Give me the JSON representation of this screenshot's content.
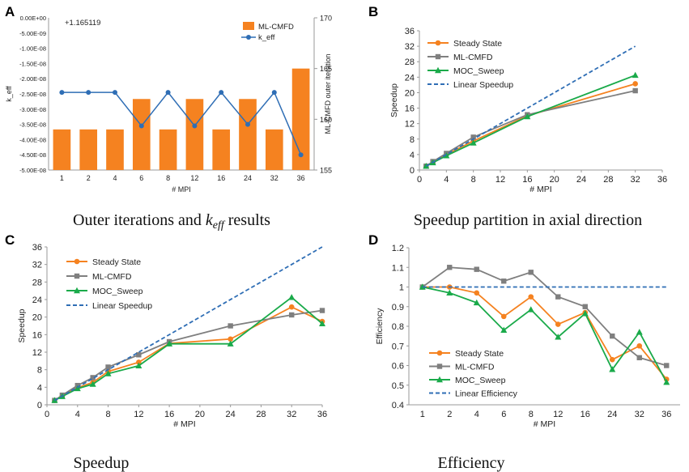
{
  "chart_data": [
    {
      "letter": "A",
      "type": "bar",
      "caption": "Outer iterations and k_eff results",
      "offset_label": "+1.165119",
      "categories": [
        "1",
        "2",
        "4",
        "6",
        "8",
        "12",
        "16",
        "24",
        "32",
        "36"
      ],
      "xlabel": "# MPI",
      "ylabel": "k_eff",
      "y2label": "ML-CMFD outer iteration",
      "ylim": [
        -5e-08,
        0
      ],
      "y_ticks": [
        "0.00E+00",
        "-5.00E-09",
        "-1.00E-08",
        "-1.50E-08",
        "-2.00E-08",
        "-2.50E-08",
        "-3.00E-08",
        "-3.50E-08",
        "-4.00E-08",
        "-4.50E-08",
        "-5.00E-08"
      ],
      "y2lim": [
        155,
        170
      ],
      "y2_ticks": [
        "155",
        "160",
        "165",
        "170"
      ],
      "series": [
        {
          "name": "ML-CMFD",
          "kind": "bar",
          "axis": "right",
          "color": "#f58220",
          "values": [
            159,
            159,
            159,
            162,
            159,
            162,
            159,
            162,
            159,
            165
          ]
        },
        {
          "name": "k_eff",
          "kind": "line",
          "axis": "left",
          "color": "#2f6eb5",
          "values": [
            -2.45e-08,
            -2.45e-08,
            -2.45e-08,
            -3.55e-08,
            -2.45e-08,
            -3.55e-08,
            -2.45e-08,
            -3.5e-08,
            -2.45e-08,
            -4.5e-08
          ]
        }
      ]
    },
    {
      "letter": "B",
      "type": "line",
      "caption": "Speedup partition in axial direction",
      "xlabel": "# MPI",
      "ylabel": "Speedup",
      "xlim": [
        0,
        36
      ],
      "ylim": [
        0,
        36
      ],
      "x_ticks": [
        "0",
        "4",
        "8",
        "12",
        "16",
        "20",
        "24",
        "28",
        "32",
        "36"
      ],
      "y_ticks": [
        "0",
        "4",
        "8",
        "12",
        "16",
        "20",
        "24",
        "28",
        "32",
        "36"
      ],
      "series": [
        {
          "name": "Steady State",
          "color": "#f58220",
          "marker": "circle",
          "x": [
            1,
            2,
            4,
            8,
            16,
            32
          ],
          "values": [
            1,
            2,
            4,
            7.5,
            14,
            22.3
          ]
        },
        {
          "name": "ML-CMFD",
          "color": "#7f7f7f",
          "marker": "square",
          "x": [
            1,
            2,
            4,
            8,
            16,
            32
          ],
          "values": [
            1,
            2.2,
            4.3,
            8.5,
            14.3,
            20.5
          ]
        },
        {
          "name": "MOC_Sweep",
          "color": "#1aaa4a",
          "marker": "triangle",
          "x": [
            1,
            2,
            4,
            8,
            16,
            32
          ],
          "values": [
            1,
            1.9,
            3.7,
            7,
            13.8,
            24.5
          ]
        },
        {
          "name": "Linear Speedup",
          "color": "#2f6eb5",
          "marker": "none",
          "dashed": true,
          "x": [
            1,
            32
          ],
          "values": [
            1,
            32
          ]
        }
      ]
    },
    {
      "letter": "C",
      "type": "line",
      "caption": "Speedup",
      "xlabel": "# MPI",
      "ylabel": "Speedup",
      "xlim": [
        0,
        36
      ],
      "ylim": [
        0,
        36
      ],
      "x_ticks": [
        "0",
        "4",
        "8",
        "12",
        "16",
        "20",
        "24",
        "28",
        "32",
        "36"
      ],
      "y_ticks": [
        "0",
        "4",
        "8",
        "12",
        "16",
        "20",
        "24",
        "28",
        "32",
        "36"
      ],
      "series": [
        {
          "name": "Steady State",
          "color": "#f58220",
          "marker": "circle",
          "x": [
            1,
            2,
            4,
            6,
            8,
            12,
            16,
            24,
            32,
            36
          ],
          "values": [
            1,
            2,
            3.9,
            5.1,
            7.6,
            9.7,
            14,
            15,
            22.3,
            19
          ]
        },
        {
          "name": "ML-CMFD",
          "color": "#7f7f7f",
          "marker": "square",
          "x": [
            1,
            2,
            4,
            6,
            8,
            12,
            16,
            24,
            32,
            36
          ],
          "values": [
            1,
            2.2,
            4.4,
            6.2,
            8.6,
            11.4,
            14.4,
            18,
            20.5,
            21.5
          ]
        },
        {
          "name": "MOC_Sweep",
          "color": "#1aaa4a",
          "marker": "triangle",
          "x": [
            1,
            2,
            4,
            6,
            8,
            12,
            16,
            24,
            32,
            36
          ],
          "values": [
            1,
            1.9,
            3.7,
            4.7,
            7.1,
            8.9,
            13.9,
            13.9,
            24.5,
            18.5
          ]
        },
        {
          "name": "Linear Speedup",
          "color": "#2f6eb5",
          "marker": "none",
          "dashed": true,
          "x": [
            1,
            36
          ],
          "values": [
            1,
            36
          ]
        }
      ]
    },
    {
      "letter": "D",
      "type": "line",
      "caption": "Efficiency",
      "xlabel": "# MPI",
      "ylabel": "Efficiency",
      "categories": [
        "1",
        "2",
        "4",
        "6",
        "8",
        "12",
        "16",
        "24",
        "32",
        "36"
      ],
      "ylim": [
        0.4,
        1.2
      ],
      "y_ticks": [
        "0.4",
        "0.5",
        "0.6",
        "0.7",
        "0.8",
        "0.9",
        "1",
        "1.1",
        "1.2"
      ],
      "series": [
        {
          "name": "Steady State",
          "color": "#f58220",
          "marker": "circle",
          "values": [
            1,
            1,
            0.97,
            0.85,
            0.95,
            0.81,
            0.87,
            0.63,
            0.7,
            0.53
          ]
        },
        {
          "name": "ML-CMFD",
          "color": "#7f7f7f",
          "marker": "square",
          "values": [
            1,
            1.1,
            1.09,
            1.03,
            1.075,
            0.95,
            0.9,
            0.75,
            0.64,
            0.6
          ]
        },
        {
          "name": "MOC_Sweep",
          "color": "#1aaa4a",
          "marker": "triangle",
          "values": [
            1,
            0.97,
            0.92,
            0.78,
            0.885,
            0.745,
            0.865,
            0.58,
            0.77,
            0.515
          ]
        },
        {
          "name": "Linear Efficiency",
          "color": "#2f6eb5",
          "marker": "none",
          "dashed": true,
          "values": [
            1,
            1,
            1,
            1,
            1,
            1,
            1,
            1,
            1,
            1
          ]
        }
      ]
    }
  ]
}
